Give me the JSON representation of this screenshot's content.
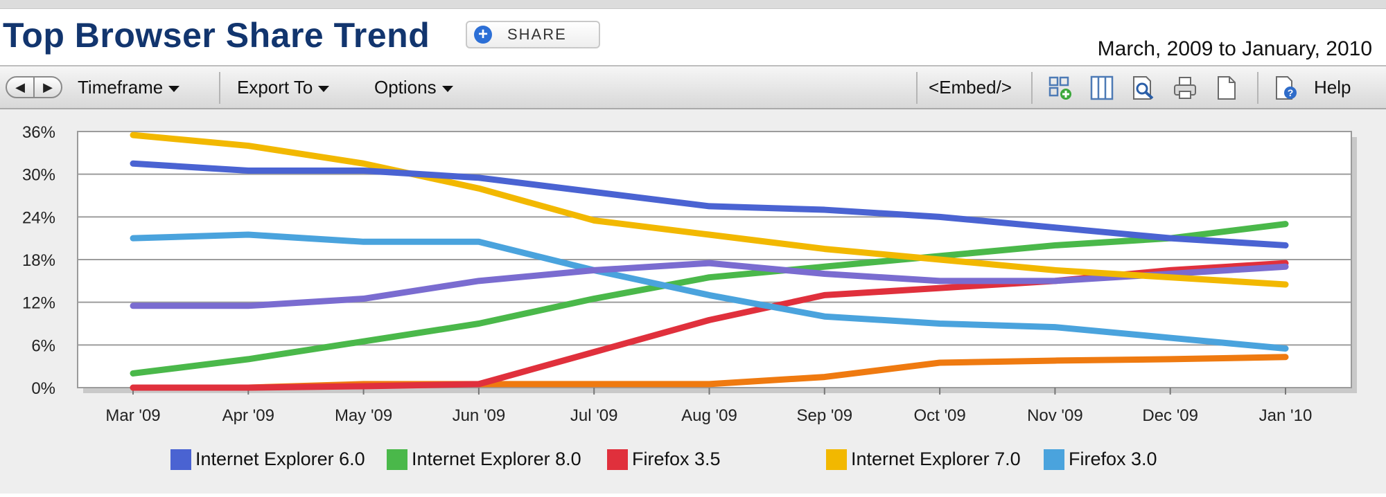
{
  "header": {
    "title": "Top Browser Share Trend",
    "share_label": "SHARE",
    "date_range": "March, 2009 to January, 2010"
  },
  "toolbar": {
    "timeframe": "Timeframe",
    "export": "Export To",
    "options": "Options",
    "embed": "<Embed/>",
    "help": "Help",
    "icons": [
      "add-widget-icon",
      "columns-icon",
      "zoom-icon",
      "print-icon",
      "document-icon",
      "help-icon"
    ]
  },
  "chart_data": {
    "type": "line",
    "title": "Top Browser Share Trend",
    "subtitle": "March, 2009 to January, 2010",
    "categories": [
      "Mar '09",
      "Apr '09",
      "May '09",
      "Jun '09",
      "Jul '09",
      "Aug '09",
      "Sep '09",
      "Oct '09",
      "Nov '09",
      "Dec '09",
      "Jan '10"
    ],
    "y_ticks": [
      "0%",
      "6%",
      "12%",
      "18%",
      "24%",
      "30%",
      "36%"
    ],
    "ylim": [
      0,
      36
    ],
    "grid": true,
    "legend_position": "bottom",
    "series": [
      {
        "name": "Internet Explorer 6.0",
        "color": "#4a63d2",
        "values": [
          31.5,
          30.5,
          30.5,
          29.5,
          27.5,
          25.5,
          25.0,
          24.0,
          22.5,
          21.0,
          20.0
        ]
      },
      {
        "name": "Internet Explorer 8.0",
        "color": "#4ab84a",
        "values": [
          2.0,
          4.0,
          6.5,
          9.0,
          12.5,
          15.5,
          17.0,
          18.5,
          20.0,
          21.0,
          23.0
        ]
      },
      {
        "name": "Firefox 3.5",
        "color": "#e0303c",
        "values": [
          0.0,
          0.0,
          0.2,
          0.5,
          5.0,
          9.5,
          13.0,
          14.0,
          15.0,
          16.5,
          17.5
        ]
      },
      {
        "name": "Internet Explorer 7.0",
        "color": "#f2b800",
        "values": [
          35.5,
          34.0,
          31.5,
          28.0,
          23.5,
          21.5,
          19.5,
          18.0,
          16.5,
          15.5,
          14.5
        ]
      },
      {
        "name": "Firefox 3.0",
        "color": "#4aa3dd",
        "values": [
          21.0,
          21.5,
          20.5,
          20.5,
          16.5,
          13.0,
          10.0,
          9.0,
          8.5,
          7.0,
          5.5
        ]
      },
      {
        "name": "",
        "color": "#7a6cd0",
        "values": [
          11.5,
          11.5,
          12.5,
          15.0,
          16.5,
          17.5,
          16.0,
          15.0,
          15.0,
          16.0,
          17.0
        ]
      },
      {
        "name": "",
        "color": "#ef7a10",
        "values": [
          0.0,
          0.0,
          0.5,
          0.5,
          0.5,
          0.5,
          1.5,
          3.5,
          3.8,
          4.0,
          4.3
        ]
      }
    ]
  }
}
